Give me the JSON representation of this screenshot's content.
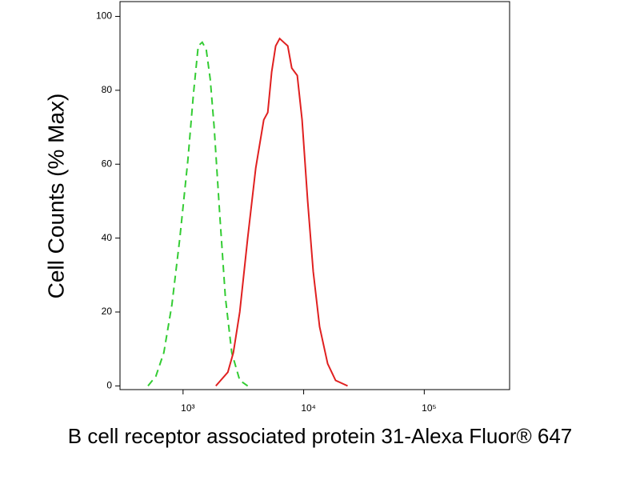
{
  "chart_data": {
    "type": "line",
    "y_label": "Cell Counts (% Max)",
    "x_label": "B cell receptor associated protein 31-Alexa Fluor® 647",
    "xscale": "log",
    "xlim": [
      300,
      510000
    ],
    "xticks": [
      {
        "value": 1000,
        "label": "10³"
      },
      {
        "value": 10000,
        "label": "10⁴"
      },
      {
        "value": 100000,
        "label": "10⁵"
      }
    ],
    "ylim": [
      -1,
      104
    ],
    "yticks": [
      0,
      20,
      40,
      60,
      80,
      100
    ],
    "series": [
      {
        "color": "#33cc33",
        "dash": true,
        "x": [
          512,
          595,
          693,
          808,
          941,
          1096,
          1219,
          1336,
          1442,
          1556,
          1679,
          1812,
          2017,
          2244,
          2535,
          2951,
          3436
        ],
        "values": [
          0,
          2.6,
          9,
          22,
          40,
          61,
          79,
          92,
          93,
          91,
          83,
          70,
          46,
          24,
          9,
          1.5,
          0
        ]
      },
      {
        "color": "#e02020",
        "dash": false,
        "x": [
          1870,
          2350,
          2612,
          2951,
          3436,
          4006,
          4665,
          5035,
          5433,
          5863,
          6327,
          6828,
          7379,
          7962,
          8851,
          9705,
          10790,
          12000,
          13550,
          15810,
          18410,
          23120
        ],
        "values": [
          0,
          3.7,
          9,
          20,
          40,
          59,
          72,
          74,
          85,
          92,
          94,
          93,
          92,
          86,
          84,
          72,
          50,
          31,
          16,
          6,
          1.5,
          0
        ]
      }
    ]
  }
}
